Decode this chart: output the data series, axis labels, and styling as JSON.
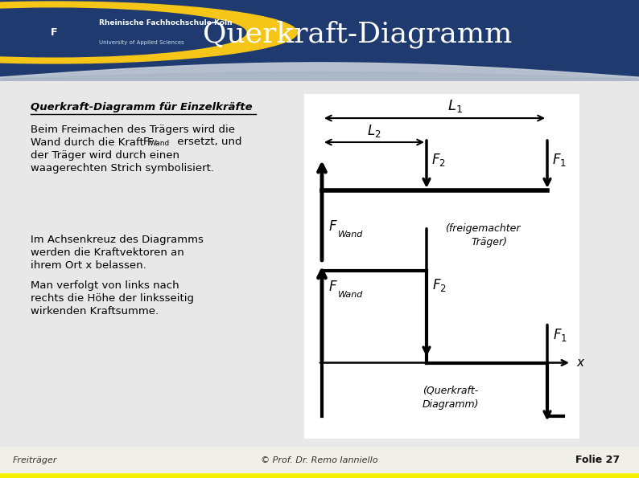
{
  "title": "Querkraft-Diagramm",
  "header_bg": "#1e3a6e",
  "header_wave_color": "#c8d0e0",
  "body_bg": "#e8e8e8",
  "footer_left": "Freiträger",
  "footer_center": "© Prof. Dr. Remo Ianniello",
  "footer_right": "Folie 27",
  "subtitle": "Querkraft-Diagramm für Einzelkräfte",
  "text1_line1": "Beim Freimachen des Trägers wird die",
  "text1_line2": "Wand durch die Kraft F",
  "text1_line2b": "Wand",
  "text1_line2c": " ersetzt, und",
  "text1_line3": "der Träger wird durch einen",
  "text1_line4": "waagerechten Strich symbolisiert.",
  "text2_line1": "Im Achsenkreuz des Diagramms",
  "text2_line2": "werden die Kraftvektoren an",
  "text2_line3": "ihrem Ort x belassen.",
  "text2_line4": "Man verfolgt von links nach",
  "text2_line5": "rechts die Höhe der linksseitig",
  "text2_line6": "wirkenden Kraftsumme.",
  "label_freigemacht1": "(freigemachter",
  "label_freigemacht2": "Träger)",
  "label_querkraft1": "(Querkraft-",
  "label_querkraft2": "Diagramm)"
}
